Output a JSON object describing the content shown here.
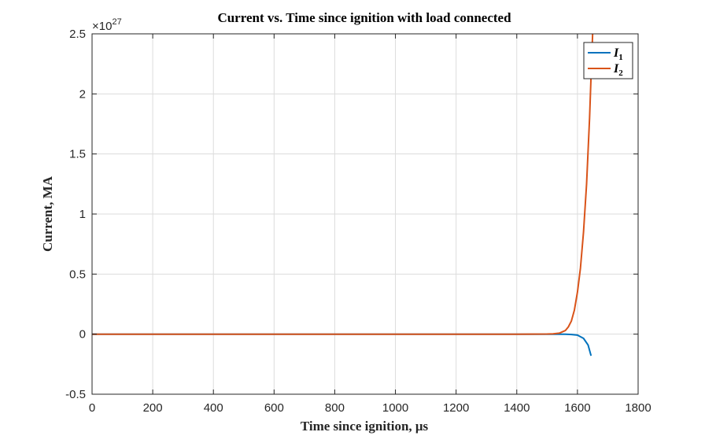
{
  "chart_data": {
    "type": "line",
    "title": "Current vs.  Time since ignition with load connected",
    "xlabel": "Time since ignition, μs",
    "ylabel": "Current, MA",
    "y_exponent_label": "×10",
    "y_exponent_power": "27",
    "xlim": [
      0,
      1800
    ],
    "ylim": [
      -0.5,
      2.5
    ],
    "xticks": [
      0,
      200,
      400,
      600,
      800,
      1000,
      1200,
      1400,
      1600,
      1800
    ],
    "xtick_labels": [
      "0",
      "200",
      "400",
      "600",
      "800",
      "1000",
      "1200",
      "1400",
      "1600",
      "1800"
    ],
    "yticks": [
      -0.5,
      0,
      0.5,
      1,
      1.5,
      2,
      2.5
    ],
    "ytick_labels": [
      "-0.5",
      "0",
      "0.5",
      "1",
      "1.5",
      "2",
      "2.5"
    ],
    "grid": true,
    "legend_position": "top-right",
    "series": [
      {
        "name": "I",
        "subscript": "1",
        "color": "#0072bd",
        "x": [
          0,
          200,
          400,
          600,
          800,
          1000,
          1200,
          1400,
          1500,
          1540,
          1560,
          1580,
          1600,
          1620,
          1635,
          1645
        ],
        "y": [
          0,
          0,
          0,
          0,
          0,
          0,
          0,
          0,
          0,
          -0.0005,
          -0.001,
          -0.003,
          -0.008,
          -0.035,
          -0.09,
          -0.18
        ]
      },
      {
        "name": "I",
        "subscript": "2",
        "color": "#d95319",
        "x": [
          0,
          200,
          400,
          600,
          800,
          1000,
          1200,
          1400,
          1500,
          1520,
          1540,
          1560,
          1570,
          1580,
          1590,
          1600,
          1610,
          1620,
          1630,
          1640,
          1645,
          1650
        ],
        "y": [
          0,
          0,
          0,
          0,
          0,
          0,
          0,
          0,
          0.001,
          0.003,
          0.008,
          0.03,
          0.06,
          0.11,
          0.2,
          0.35,
          0.55,
          0.85,
          1.25,
          1.8,
          2.15,
          2.5
        ]
      }
    ]
  }
}
